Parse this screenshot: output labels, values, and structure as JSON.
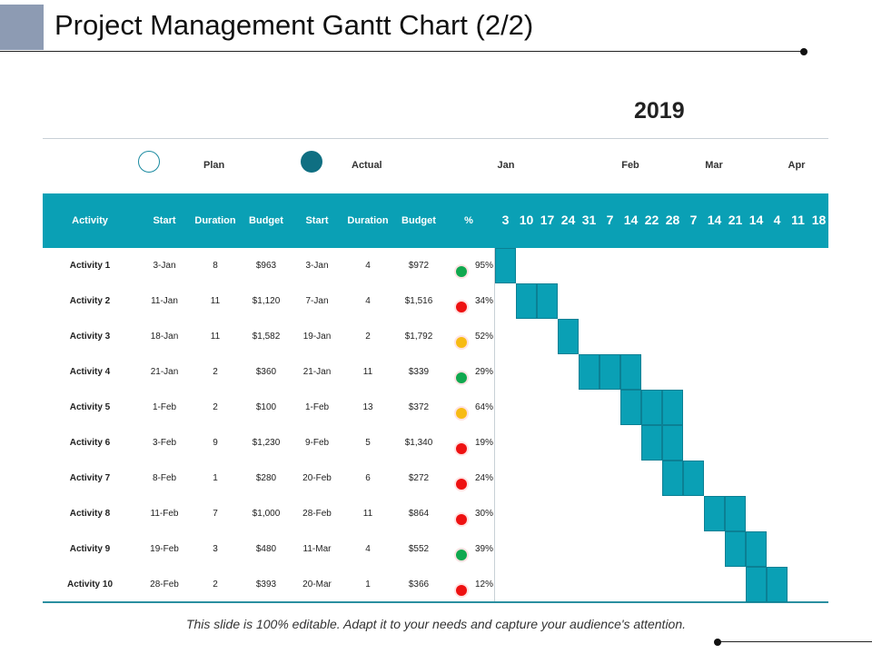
{
  "title": "Project Management Gantt Chart (2/2)",
  "year": "2019",
  "legend": {
    "plan": "Plan",
    "actual": "Actual"
  },
  "months": [
    "Jan",
    "Feb",
    "Mar",
    "Apr"
  ],
  "columns": [
    "Activity",
    "Start",
    "Duration",
    "Budget",
    "Start",
    "Duration",
    "Budget",
    "%"
  ],
  "weeks": [
    "3",
    "10",
    "17",
    "24",
    "31",
    "7",
    "14",
    "22",
    "28",
    "7",
    "14",
    "21",
    "14",
    "4",
    "11",
    "18"
  ],
  "colors": {
    "accent": "#0aa0b5",
    "green": "#11a84f",
    "red": "#ee1111",
    "yellow": "#f7bb14"
  },
  "rows": [
    {
      "name": "Activity 1",
      "ps": "3-Jan",
      "pd": "8",
      "pb": "$963",
      "as": "3-Jan",
      "ad": "4",
      "ab": "$972",
      "status": "green",
      "pct": "95%",
      "bar": [
        0
      ]
    },
    {
      "name": "Activity 2",
      "ps": "11-Jan",
      "pd": "11",
      "pb": "$1,120",
      "as": "7-Jan",
      "ad": "4",
      "ab": "$1,516",
      "status": "red",
      "pct": "34%",
      "bar": [
        1,
        2
      ]
    },
    {
      "name": "Activity 3",
      "ps": "18-Jan",
      "pd": "11",
      "pb": "$1,582",
      "as": "19-Jan",
      "ad": "2",
      "ab": "$1,792",
      "status": "yellow",
      "pct": "52%",
      "bar": [
        3
      ]
    },
    {
      "name": "Activity 4",
      "ps": "21-Jan",
      "pd": "2",
      "pb": "$360",
      "as": "21-Jan",
      "ad": "11",
      "ab": "$339",
      "status": "green",
      "pct": "29%",
      "bar": [
        4,
        5,
        6
      ]
    },
    {
      "name": "Activity 5",
      "ps": "1-Feb",
      "pd": "2",
      "pb": "$100",
      "as": "1-Feb",
      "ad": "13",
      "ab": "$372",
      "status": "yellow",
      "pct": "64%",
      "bar": [
        6,
        7,
        8
      ]
    },
    {
      "name": "Activity 6",
      "ps": "3-Feb",
      "pd": "9",
      "pb": "$1,230",
      "as": "9-Feb",
      "ad": "5",
      "ab": "$1,340",
      "status": "red",
      "pct": "19%",
      "bar": [
        7,
        8
      ]
    },
    {
      "name": "Activity 7",
      "ps": "8-Feb",
      "pd": "1",
      "pb": "$280",
      "as": "20-Feb",
      "ad": "6",
      "ab": "$272",
      "status": "red",
      "pct": "24%",
      "bar": [
        8,
        9
      ]
    },
    {
      "name": "Activity 8",
      "ps": "11-Feb",
      "pd": "7",
      "pb": "$1,000",
      "as": "28-Feb",
      "ad": "11",
      "ab": "$864",
      "status": "red",
      "pct": "30%",
      "bar": [
        10,
        11
      ]
    },
    {
      "name": "Activity 9",
      "ps": "19-Feb",
      "pd": "3",
      "pb": "$480",
      "as": "11-Mar",
      "ad": "4",
      "ab": "$552",
      "status": "green",
      "pct": "39%",
      "bar": [
        11,
        12
      ]
    },
    {
      "name": "Activity 10",
      "ps": "28-Feb",
      "pd": "2",
      "pb": "$393",
      "as": "20-Mar",
      "ad": "1",
      "ab": "$366",
      "status": "red",
      "pct": "12%",
      "bar": [
        12,
        13
      ]
    }
  ],
  "footer": "This slide is 100% editable. Adapt it to your needs and capture your audience's attention."
}
